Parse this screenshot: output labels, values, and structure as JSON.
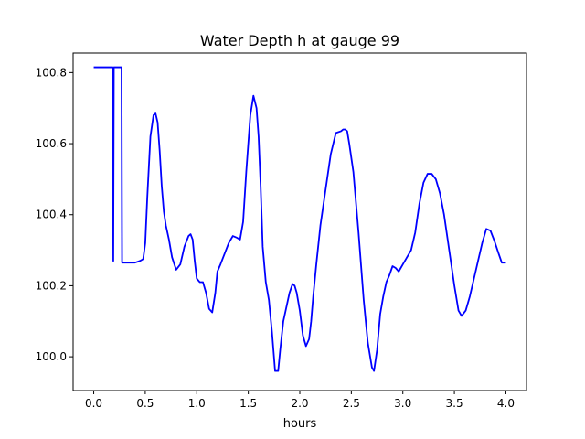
{
  "chart_data": {
    "type": "line",
    "title": "Water Depth h at gauge 99",
    "xlabel": "hours",
    "ylabel": "",
    "xlim": [
      -0.2,
      4.2
    ],
    "ylim": [
      99.905,
      100.855
    ],
    "x_ticks": [
      0.0,
      0.5,
      1.0,
      1.5,
      2.0,
      2.5,
      3.0,
      3.5,
      4.0
    ],
    "x_tick_labels": [
      "0.0",
      "0.5",
      "1.0",
      "1.5",
      "2.0",
      "2.5",
      "3.0",
      "3.5",
      "4.0"
    ],
    "y_ticks": [
      100.0,
      100.2,
      100.4,
      100.6,
      100.8
    ],
    "y_tick_labels": [
      "100.0",
      "100.2",
      "100.4",
      "100.6",
      "100.8"
    ],
    "grid": false,
    "line_color": "#0000ff",
    "series": [
      {
        "x": [
          0.0,
          0.18,
          0.185,
          0.19,
          0.195,
          0.2,
          0.27,
          0.275,
          0.28,
          0.4,
          0.45,
          0.48,
          0.5,
          0.52,
          0.55,
          0.58,
          0.6,
          0.62,
          0.64,
          0.66,
          0.68,
          0.7,
          0.73,
          0.76,
          0.8,
          0.84,
          0.88,
          0.92,
          0.94,
          0.96,
          0.98,
          1.0,
          1.03,
          1.06,
          1.09,
          1.12,
          1.15,
          1.18,
          1.2,
          1.23,
          1.27,
          1.31,
          1.35,
          1.39,
          1.42,
          1.45,
          1.48,
          1.52,
          1.55,
          1.58,
          1.6,
          1.62,
          1.64,
          1.67,
          1.7,
          1.73,
          1.76,
          1.79,
          1.81,
          1.84,
          1.87,
          1.9,
          1.93,
          1.95,
          1.97,
          2.0,
          2.03,
          2.06,
          2.09,
          2.11,
          2.13,
          2.16,
          2.2,
          2.25,
          2.3,
          2.35,
          2.4,
          2.42,
          2.44,
          2.46,
          2.48,
          2.52,
          2.57,
          2.62,
          2.66,
          2.7,
          2.72,
          2.75,
          2.78,
          2.81,
          2.84,
          2.87,
          2.9,
          2.93,
          2.96,
          3.0,
          3.04,
          3.08,
          3.12,
          3.16,
          3.2,
          3.24,
          3.28,
          3.32,
          3.36,
          3.4,
          3.45,
          3.5,
          3.54,
          3.57,
          3.61,
          3.65,
          3.69,
          3.73,
          3.77,
          3.81,
          3.85,
          3.89,
          3.93,
          3.96,
          4.0
        ],
        "y": [
          100.815,
          100.815,
          100.815,
          100.27,
          100.815,
          100.815,
          100.815,
          100.265,
          100.265,
          100.265,
          100.27,
          100.275,
          100.32,
          100.45,
          100.62,
          100.68,
          100.685,
          100.66,
          100.58,
          100.48,
          100.41,
          100.37,
          100.33,
          100.28,
          100.245,
          100.26,
          100.31,
          100.34,
          100.345,
          100.33,
          100.27,
          100.22,
          100.21,
          100.21,
          100.18,
          100.135,
          100.125,
          100.18,
          100.24,
          100.26,
          100.29,
          100.32,
          100.34,
          100.335,
          100.33,
          100.38,
          100.52,
          100.68,
          100.735,
          100.7,
          100.62,
          100.48,
          100.31,
          100.21,
          100.16,
          100.07,
          99.96,
          99.96,
          100.02,
          100.1,
          100.14,
          100.18,
          100.205,
          100.2,
          100.18,
          100.13,
          100.06,
          100.03,
          100.05,
          100.1,
          100.17,
          100.26,
          100.37,
          100.47,
          100.57,
          100.63,
          100.635,
          100.64,
          100.64,
          100.635,
          100.6,
          100.52,
          100.35,
          100.16,
          100.04,
          99.97,
          99.96,
          100.02,
          100.12,
          100.17,
          100.21,
          100.23,
          100.255,
          100.25,
          100.24,
          100.26,
          100.28,
          100.3,
          100.35,
          100.43,
          100.49,
          100.515,
          100.515,
          100.5,
          100.46,
          100.4,
          100.3,
          100.2,
          100.13,
          100.115,
          100.13,
          100.17,
          100.22,
          100.27,
          100.32,
          100.36,
          100.355,
          100.325,
          100.29,
          100.265,
          100.265
        ]
      }
    ]
  }
}
